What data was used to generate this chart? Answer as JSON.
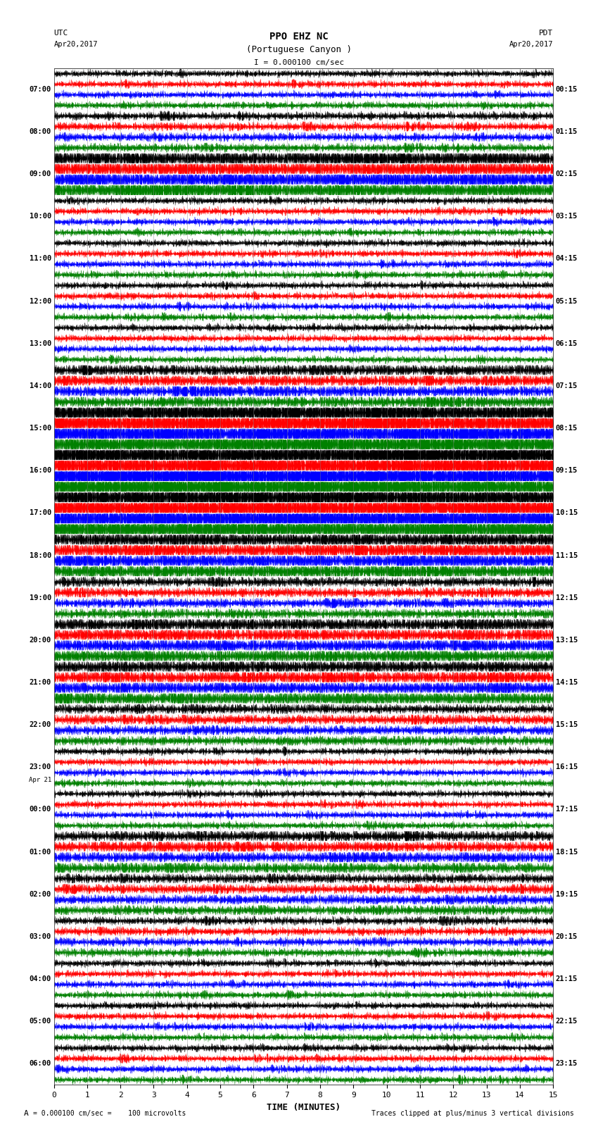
{
  "title_line1": "PPO EHZ NC",
  "title_line2": "(Portuguese Canyon )",
  "title_scale": "I = 0.000100 cm/sec",
  "label_left_top": "UTC",
  "label_left_date": "Apr20,2017",
  "label_right_top": "PDT",
  "label_right_date": "Apr20,2017",
  "xlabel": "TIME (MINUTES)",
  "footer_left": "= 0.000100 cm/sec =    100 microvolts",
  "footer_right": "Traces clipped at plus/minus 3 vertical divisions",
  "left_times": [
    "07:00",
    "08:00",
    "09:00",
    "10:00",
    "11:00",
    "12:00",
    "13:00",
    "14:00",
    "15:00",
    "16:00",
    "17:00",
    "18:00",
    "19:00",
    "20:00",
    "21:00",
    "22:00",
    "23:00",
    "Apr 21",
    "00:00",
    "01:00",
    "02:00",
    "03:00",
    "04:00",
    "05:00",
    "06:00"
  ],
  "right_times": [
    "00:15",
    "01:15",
    "02:15",
    "03:15",
    "04:15",
    "05:15",
    "06:15",
    "07:15",
    "08:15",
    "09:15",
    "10:15",
    "11:15",
    "12:15",
    "13:15",
    "14:15",
    "15:15",
    "16:15",
    "17:15",
    "18:15",
    "19:15",
    "20:15",
    "21:15",
    "22:15",
    "23:15"
  ],
  "trace_colors": [
    "black",
    "red",
    "blue",
    "green"
  ],
  "n_rows": 24,
  "traces_per_row": 4,
  "xlim": [
    0,
    15
  ],
  "background_color": "white",
  "seed": 42,
  "activity": [
    1.0,
    1.2,
    3.5,
    1.0,
    1.0,
    1.0,
    1.0,
    2.0,
    6.0,
    9.0,
    7.0,
    3.0,
    1.5,
    2.5,
    2.5,
    1.5,
    1.0,
    1.0,
    1.8,
    1.5,
    1.2,
    1.0,
    1.0,
    1.0
  ]
}
